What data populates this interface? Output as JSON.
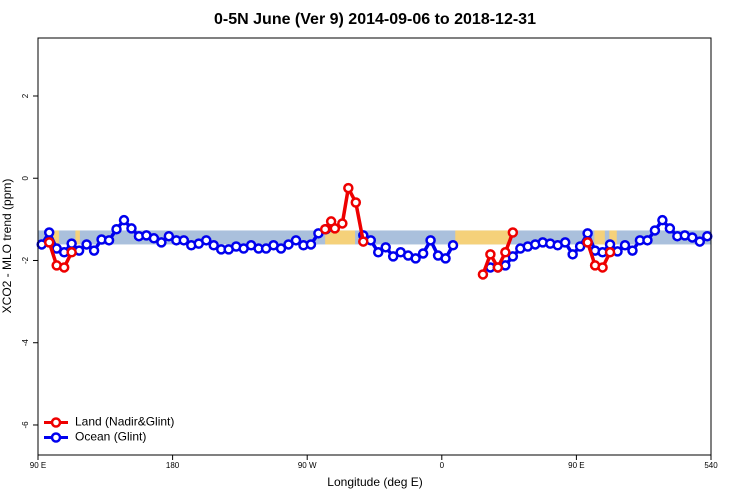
{
  "chart_data": {
    "type": "line",
    "title": "0-5N June (Ver 9)   2014-09-06 to 2018-12-31",
    "x_label": "Longitude (deg E)",
    "y_label": "XCO2 - MLO trend (ppm)",
    "xlim": [
      90,
      540
    ],
    "ylim": [
      -6.73,
      3.41
    ],
    "xticks": [
      {
        "value": 90,
        "label": "90 E"
      },
      180,
      {
        "value": 270,
        "label": "90 W"
      },
      {
        "value": 360,
        "label": "0"
      },
      {
        "value": 450,
        "label": "90 E"
      },
      540
    ],
    "yticks": [
      -6,
      -4,
      -2,
      0,
      2
    ],
    "band_ylim": [
      -1.61,
      -1.27
    ],
    "bands": [
      {
        "x": [
          90,
          540
        ],
        "color": "#aac0dc"
      },
      {
        "x": [
          100,
          104
        ],
        "color": "#f5d17a"
      },
      {
        "x": [
          115,
          118
        ],
        "color": "#f5d17a"
      },
      {
        "x": [
          282,
          302
        ],
        "color": "#f5d17a"
      },
      {
        "x": [
          369,
          405
        ],
        "color": "#f5d17a"
      },
      {
        "x": [
          462,
          469
        ],
        "color": "#f5d17a"
      },
      {
        "x": [
          472,
          477
        ],
        "color": "#f5d17a"
      }
    ],
    "legend": "bottom-left",
    "series": [
      {
        "name": "Ocean (Glint)",
        "color": "#0000ee",
        "x": [
          92.5,
          97.5,
          102.5,
          107.5,
          112.5,
          117.5,
          122.5,
          127.5,
          132.5,
          137.5,
          142.5,
          147.5,
          152.5,
          157.5,
          162.5,
          167.5,
          172.5,
          177.5,
          182.5,
          187.5,
          192.5,
          197.5,
          202.5,
          207.5,
          212.5,
          217.5,
          222.5,
          227.5,
          232.5,
          237.5,
          242.5,
          247.5,
          252.5,
          257.5,
          262.5,
          267.5,
          272.5,
          277.5,
          282.5,
          287.5,
          292.5,
          297.5,
          302.5,
          307.5,
          312.5,
          317.5,
          322.5,
          327.5,
          332.5,
          337.5,
          342.5,
          347.5,
          352.5,
          357.5,
          362.5,
          367.5,
          372.5,
          377.5,
          382.5,
          387.5,
          392.5,
          397.5,
          402.5,
          407.5,
          412.5,
          417.5,
          422.5,
          427.5,
          432.5,
          437.5,
          442.5,
          447.5,
          452.5,
          457.5,
          462.5,
          467.5,
          472.5,
          477.5,
          482.5,
          487.5,
          492.5,
          497.5,
          502.5,
          507.5,
          512.5,
          517.5,
          522.5,
          527.5,
          532.5,
          537.5
        ],
        "values": [
          -1.61,
          -1.32,
          -1.71,
          -1.8,
          -1.59,
          -1.76,
          -1.61,
          -1.76,
          -1.49,
          -1.51,
          -1.24,
          -1.02,
          -1.22,
          -1.41,
          -1.39,
          -1.46,
          -1.56,
          -1.41,
          -1.51,
          -1.51,
          -1.63,
          -1.59,
          -1.51,
          -1.63,
          -1.73,
          -1.73,
          -1.66,
          -1.71,
          -1.63,
          -1.71,
          -1.71,
          -1.63,
          -1.71,
          -1.61,
          -1.51,
          -1.63,
          -1.61,
          -1.34,
          -1.24,
          null,
          null,
          null,
          null,
          -1.39,
          -1.51,
          -1.8,
          -1.68,
          -1.9,
          -1.8,
          -1.88,
          -1.95,
          -1.83,
          -1.51,
          -1.88,
          -1.95,
          -1.63,
          null,
          null,
          null,
          null,
          -2.17,
          -2.17,
          -2.12,
          -1.9,
          -1.71,
          -1.66,
          -1.61,
          -1.56,
          -1.59,
          -1.63,
          -1.56,
          -1.85,
          -1.66,
          -1.34,
          -1.76,
          -1.8,
          -1.61,
          -1.78,
          -1.63,
          -1.76,
          -1.51,
          -1.51,
          -1.27,
          -1.02,
          -1.22,
          -1.41,
          -1.39,
          -1.44,
          -1.54,
          -1.41
        ]
      },
      {
        "name": "Land (Nadir&Glint)",
        "color": "#ee0000",
        "x": [
          97.5,
          102.5,
          107.5,
          112.5,
          null,
          282,
          286,
          288.5,
          293.5,
          297.5,
          302.5,
          307.5,
          null,
          387.5,
          392.5,
          397.5,
          402.5,
          407.5,
          null,
          457.5,
          462.5,
          467.5,
          472.5
        ],
        "values": [
          -1.56,
          -2.12,
          -2.17,
          -1.8,
          null,
          -1.24,
          -1.05,
          -1.22,
          -1.1,
          -0.24,
          -0.59,
          -1.54,
          null,
          -2.34,
          -1.85,
          -2.17,
          -1.8,
          -1.32,
          null,
          -1.56,
          -2.12,
          -2.17,
          -1.8
        ]
      }
    ]
  }
}
